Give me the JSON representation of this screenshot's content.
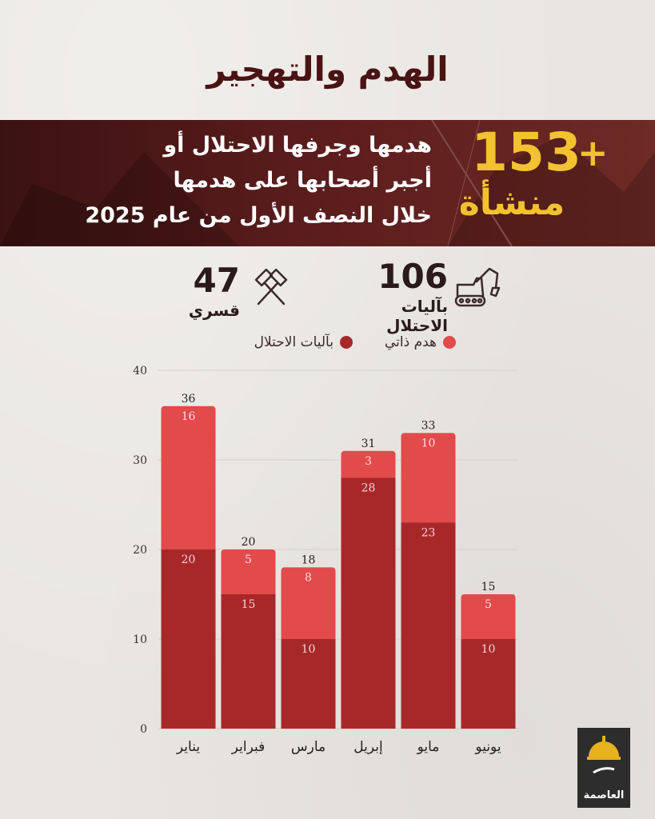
{
  "header": {
    "title": "الهدم والتهجير"
  },
  "banner": {
    "big_number": "153",
    "plus": "+",
    "unit": "منشأة",
    "lines": [
      "هدمها وجرفها الاحتلال أو",
      "أجبر أصحابها على هدمها",
      "خلال النصف الأول من عام 2025"
    ]
  },
  "stats": {
    "occupation": {
      "value": "106",
      "label": "بآليات الاحتلال",
      "icon": "excavator-icon"
    },
    "forced": {
      "value": "47",
      "label": "قسري",
      "icon": "hammers-icon"
    }
  },
  "colors": {
    "occupation": "#a8282a",
    "self": "#e24a4c",
    "title": "#4a1414",
    "gold": "#f2c230"
  },
  "logo": {
    "text": "العاصمة"
  },
  "chart_data": {
    "type": "bar",
    "stacked": true,
    "categories": [
      "يناير",
      "فبراير",
      "مارس",
      "إبريل",
      "مايو",
      "يونيو"
    ],
    "series": [
      {
        "name": "بآليات الاحتلال",
        "values": [
          20,
          15,
          10,
          28,
          23,
          10
        ]
      },
      {
        "name": "هدم ذاتي",
        "values": [
          16,
          5,
          8,
          3,
          10,
          5
        ]
      }
    ],
    "totals": [
      36,
      20,
      18,
      31,
      33,
      15
    ],
    "ylim": [
      0,
      40
    ],
    "yticks": [
      0,
      10,
      20,
      30,
      40
    ],
    "grid": true,
    "legend": "top"
  }
}
